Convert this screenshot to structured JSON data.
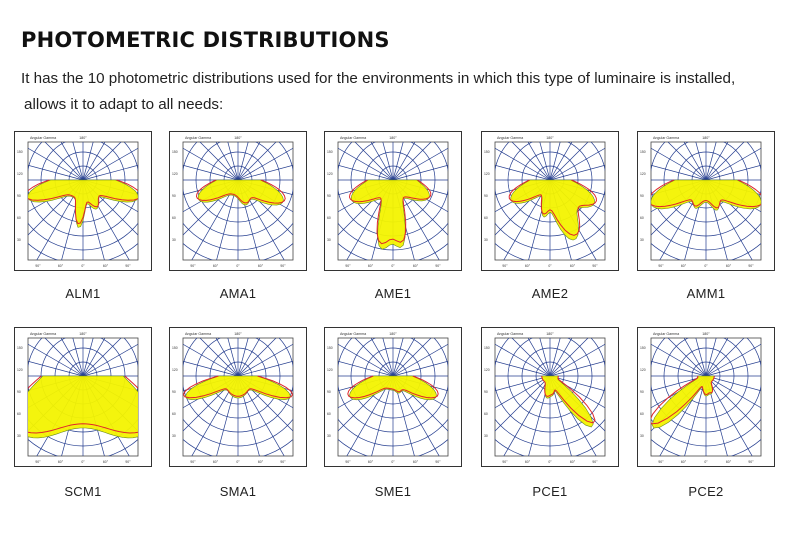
{
  "heading": "PHOTOMETRIC DISTRIBUTIONS",
  "intro": {
    "line1": "It has the 10 photometric distributions used for the environments in which this type of luminaire is installed,",
    "line2": "allows it to adapt to all needs:"
  },
  "diagram_labels": {
    "header_left": "Angular Gamma",
    "header_mid": "180°",
    "rings_left": [
      "150",
      "120",
      "90",
      "60",
      "30"
    ],
    "bottom": [
      "90°",
      "60°",
      "0°",
      "60°",
      "90°"
    ]
  },
  "colors": {
    "grid": "#243d8f",
    "fill": "#f3f300",
    "outline": "#e0262a"
  },
  "distributions": [
    {
      "label": "ALM1"
    },
    {
      "label": "AMA1"
    },
    {
      "label": "AME1"
    },
    {
      "label": "AME2"
    },
    {
      "label": "AMM1"
    },
    {
      "label": "SCM1"
    },
    {
      "label": "SMA1"
    },
    {
      "label": "SME1"
    },
    {
      "label": "PCE1"
    },
    {
      "label": "PCE2"
    }
  ]
}
